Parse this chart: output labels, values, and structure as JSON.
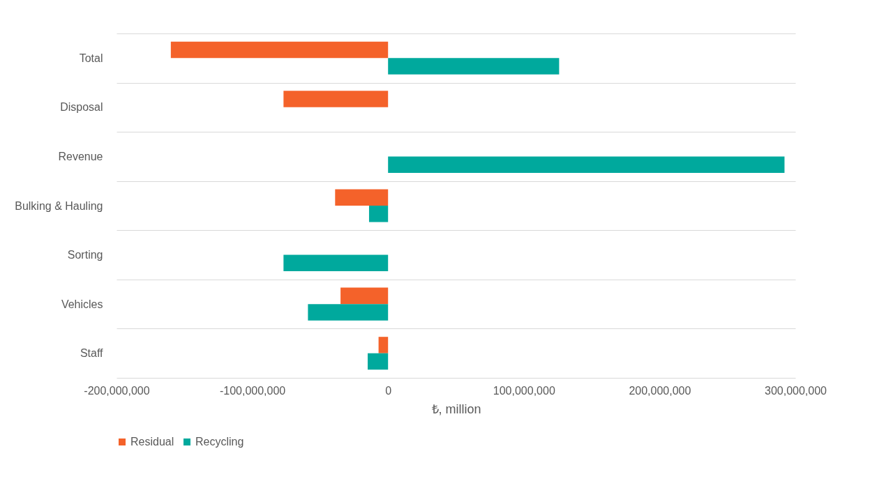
{
  "chart_data": {
    "type": "bar",
    "orientation": "horizontal",
    "xlabel": "₺, million",
    "categories": [
      "Total",
      "Disposal",
      "Revenue",
      "Bulking & Hauling",
      "Sorting",
      "Vehicles",
      "Staff"
    ],
    "series": [
      {
        "name": "Residual",
        "color": "#f4622a",
        "values": [
          -160000000,
          -77000000,
          null,
          -39000000,
          null,
          -35000000,
          -7000000
        ]
      },
      {
        "name": "Recycling",
        "color": "#00a99d",
        "values": [
          126000000,
          null,
          292000000,
          -14000000,
          -77000000,
          -59000000,
          -15000000
        ]
      }
    ],
    "xlim": [
      -200000000,
      300000000
    ],
    "xticks": [
      {
        "value": -200000000,
        "label": "-200,000,000"
      },
      {
        "value": -100000000,
        "label": "-100,000,000"
      },
      0,
      {
        "value": 100000000,
        "label": "100,000,000"
      },
      {
        "value": 200000000,
        "label": "200,000,000"
      },
      {
        "value": 300000000,
        "label": "300,000,000"
      }
    ],
    "grid": "y",
    "legend": "bottom"
  }
}
